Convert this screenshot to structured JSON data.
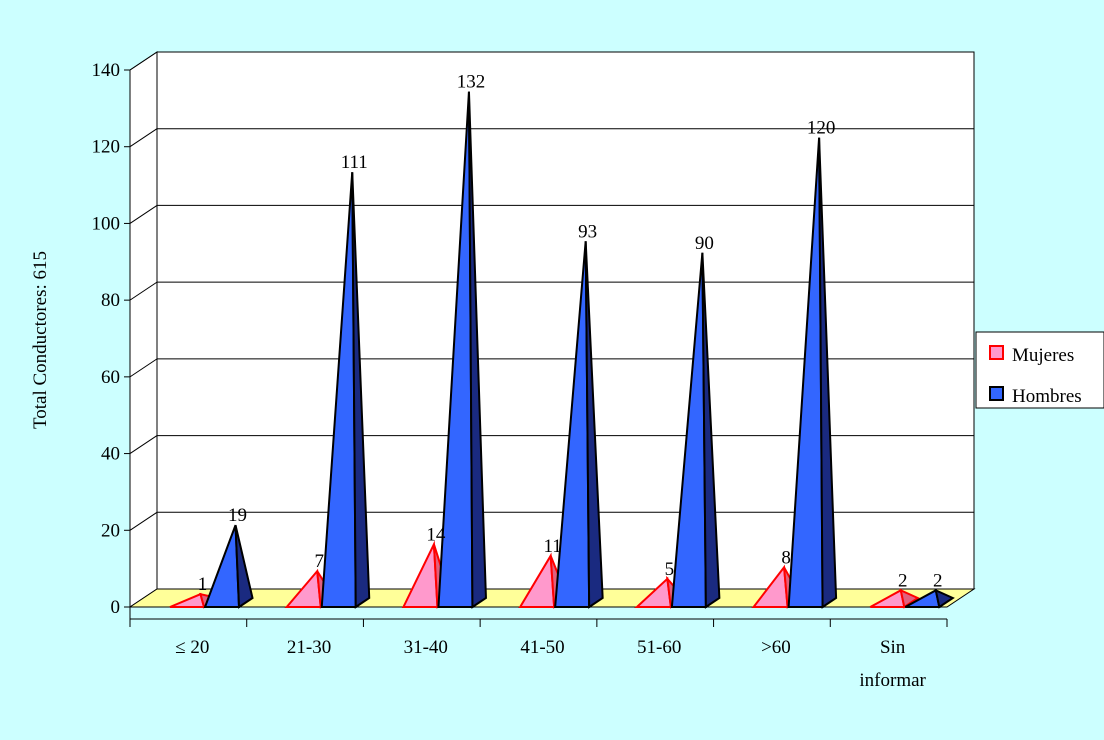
{
  "chart_data": {
    "type": "bar",
    "bar_shape": "3d-pyramid",
    "categories": [
      "≤ 20",
      "21-30",
      "31-40",
      "41-50",
      "51-60",
      ">60",
      "Sin informar"
    ],
    "series": [
      {
        "name": "Mujeres",
        "values": [
          1,
          7,
          14,
          11,
          5,
          8,
          2
        ],
        "color": "#ff99cc",
        "edge": "#ff0000"
      },
      {
        "name": "Hombres",
        "values": [
          19,
          111,
          132,
          93,
          90,
          120,
          2
        ],
        "color": "#3366ff",
        "edge": "#000000"
      }
    ],
    "ylabel": "Total Conductores: 615",
    "ylim": [
      0,
      140
    ],
    "yticks": [
      0,
      20,
      40,
      60,
      80,
      100,
      120,
      140
    ],
    "grid": true,
    "legend_position": "right",
    "colors": {
      "background": "#ccffff",
      "plot_wall": "#ffffff",
      "floor": "#ffff99"
    }
  }
}
